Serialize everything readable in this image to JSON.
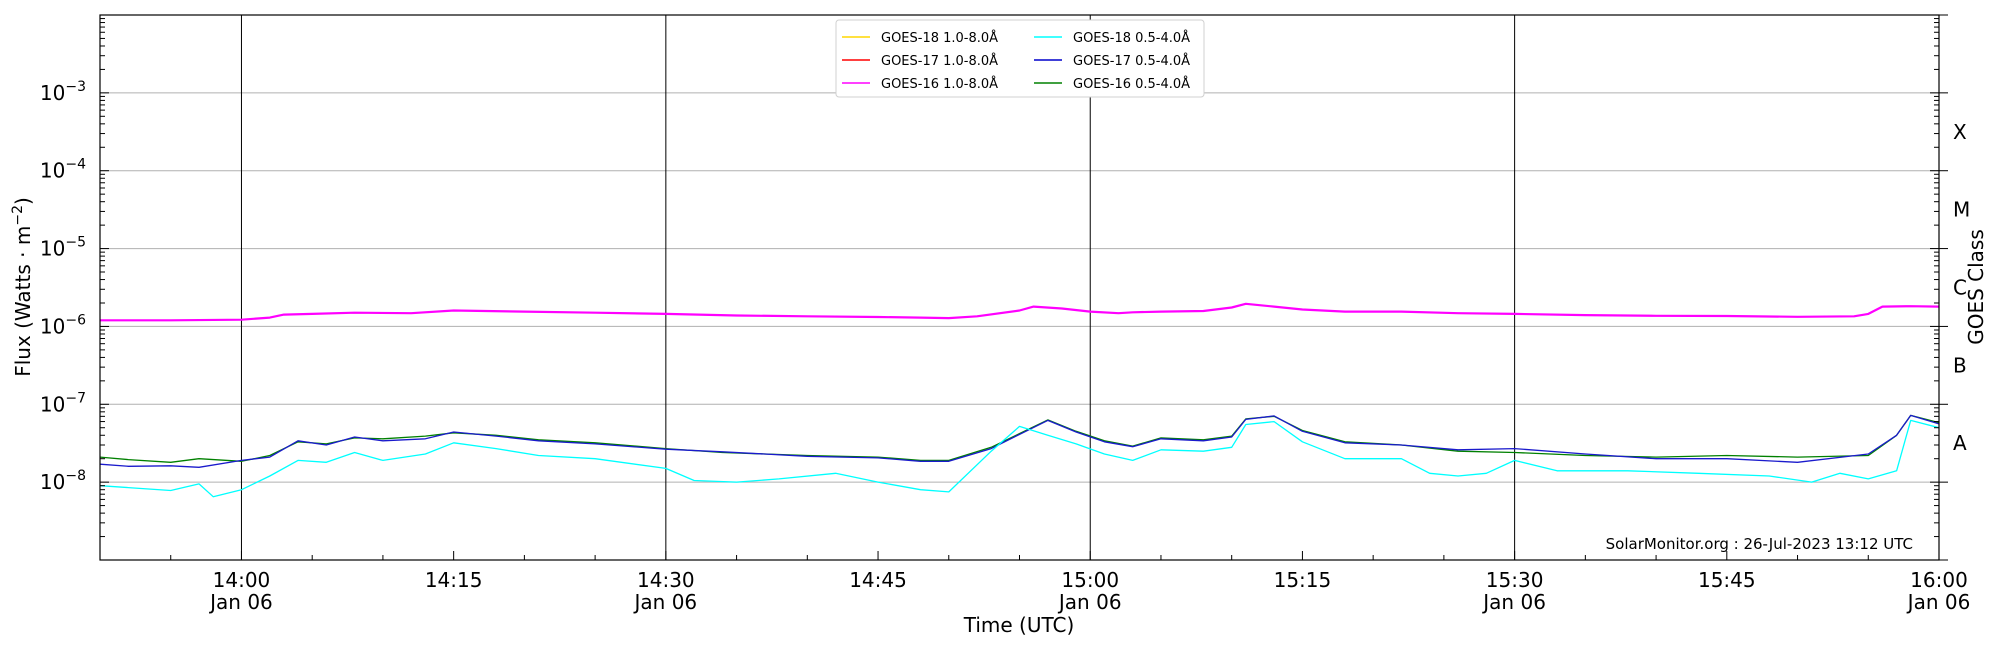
{
  "chart_data": {
    "type": "line",
    "xlabel": "Time (UTC)",
    "ylabel": "Flux (Watts · m⁻²)",
    "y2label": "GOES Class",
    "y_scale": "log",
    "ylim": [
      1e-09,
      0.01
    ],
    "xlim": [
      "2023-01-06 13:50",
      "2023-01-06 16:00"
    ],
    "grid": "horizontal",
    "legend_position": "top-center",
    "credit": "SolarMonitor.org : 26-Jul-2023 13:12 UTC",
    "y_ticks": [
      {
        "value": 1e-08,
        "base": "10",
        "exp": "−8"
      },
      {
        "value": 1e-07,
        "base": "10",
        "exp": "−7"
      },
      {
        "value": 1e-06,
        "base": "10",
        "exp": "−6"
      },
      {
        "value": 1e-05,
        "base": "10",
        "exp": "−5"
      },
      {
        "value": 0.0001,
        "base": "10",
        "exp": "−4"
      },
      {
        "value": 0.001,
        "base": "10",
        "exp": "−3"
      }
    ],
    "x_ticks": [
      {
        "time": "14:00",
        "date": "Jan 06"
      },
      {
        "time": "14:15",
        "date": ""
      },
      {
        "time": "14:30",
        "date": "Jan 06"
      },
      {
        "time": "14:45",
        "date": ""
      },
      {
        "time": "15:00",
        "date": "Jan 06"
      },
      {
        "time": "15:15",
        "date": ""
      },
      {
        "time": "15:30",
        "date": "Jan 06"
      },
      {
        "time": "15:45",
        "date": ""
      },
      {
        "time": "16:00",
        "date": "Jan 06"
      }
    ],
    "vertical_lines": [
      "14:00",
      "14:30",
      "15:00",
      "15:30"
    ],
    "goes_classes": [
      {
        "label": "A",
        "value": 3.16e-08
      },
      {
        "label": "B",
        "value": 3.16e-07
      },
      {
        "label": "C",
        "value": 3.16e-06
      },
      {
        "label": "M",
        "value": 3.16e-05
      },
      {
        "label": "X",
        "value": 0.000316
      }
    ],
    "legend": [
      {
        "name": "GOES-18 1.0-8.0Å",
        "color": "#ffd700"
      },
      {
        "name": "GOES-17 1.0-8.0Å",
        "color": "#ff0000"
      },
      {
        "name": "GOES-16 1.0-8.0Å",
        "color": "#ff00ff"
      },
      {
        "name": "GOES-18 0.5-4.0Å",
        "color": "#00ffff"
      },
      {
        "name": "GOES-17 0.5-4.0Å",
        "color": "#0000cc"
      },
      {
        "name": "GOES-16 0.5-4.0Å",
        "color": "#008000"
      }
    ],
    "series": [
      {
        "name": "GOES-16 1.0-8.0Å",
        "color": "#ff00ff",
        "x": [
          "13:50",
          "13:55",
          "14:00",
          "14:02",
          "14:03",
          "14:05",
          "14:08",
          "14:12",
          "14:15",
          "14:20",
          "14:25",
          "14:30",
          "14:35",
          "14:40",
          "14:45",
          "14:48",
          "14:50",
          "14:52",
          "14:55",
          "14:56",
          "14:58",
          "15:00",
          "15:02",
          "15:03",
          "15:05",
          "15:08",
          "15:10",
          "15:11",
          "15:13",
          "15:15",
          "15:18",
          "15:22",
          "15:26",
          "15:30",
          "15:35",
          "15:40",
          "15:45",
          "15:50",
          "15:54",
          "15:55",
          "15:56",
          "15:58",
          "16:00"
        ],
        "y": [
          1.2e-06,
          1.2e-06,
          1.22e-06,
          1.3e-06,
          1.42e-06,
          1.45e-06,
          1.5e-06,
          1.48e-06,
          1.6e-06,
          1.55e-06,
          1.5e-06,
          1.45e-06,
          1.38e-06,
          1.35e-06,
          1.32e-06,
          1.3e-06,
          1.28e-06,
          1.35e-06,
          1.6e-06,
          1.8e-06,
          1.7e-06,
          1.55e-06,
          1.48e-06,
          1.52e-06,
          1.55e-06,
          1.58e-06,
          1.75e-06,
          1.95e-06,
          1.8e-06,
          1.65e-06,
          1.55e-06,
          1.55e-06,
          1.48e-06,
          1.45e-06,
          1.4e-06,
          1.37e-06,
          1.36e-06,
          1.33e-06,
          1.35e-06,
          1.45e-06,
          1.8e-06,
          1.82e-06,
          1.8e-06
        ]
      },
      {
        "name": "GOES-16 0.5-4.0Å",
        "color": "#008000",
        "x": [
          "13:50",
          "13:52",
          "13:55",
          "13:57",
          "14:00",
          "14:02",
          "14:04",
          "14:06",
          "14:08",
          "14:10",
          "14:13",
          "14:15",
          "14:18",
          "14:21",
          "14:25",
          "14:30",
          "14:34",
          "14:40",
          "14:45",
          "14:48",
          "14:50",
          "14:53",
          "14:55",
          "14:57",
          "14:59",
          "15:01",
          "15:03",
          "15:05",
          "15:08",
          "15:10",
          "15:11",
          "15:13",
          "15:15",
          "15:18",
          "15:22",
          "15:26",
          "15:30",
          "15:35",
          "15:40",
          "15:45",
          "15:50",
          "15:55",
          "15:57",
          "15:58",
          "16:00"
        ],
        "y": [
          2.1e-08,
          1.95e-08,
          1.8e-08,
          2e-08,
          1.85e-08,
          2.2e-08,
          3.3e-08,
          3.1e-08,
          3.7e-08,
          3.6e-08,
          3.9e-08,
          4.3e-08,
          4e-08,
          3.5e-08,
          3.2e-08,
          2.7e-08,
          2.4e-08,
          2.2e-08,
          2.1e-08,
          1.9e-08,
          1.9e-08,
          2.8e-08,
          4.2e-08,
          6.3e-08,
          4.5e-08,
          3.4e-08,
          2.9e-08,
          3.7e-08,
          3.5e-08,
          3.9e-08,
          6.5e-08,
          7e-08,
          4.6e-08,
          3.3e-08,
          3e-08,
          2.5e-08,
          2.4e-08,
          2.2e-08,
          2.1e-08,
          2.2e-08,
          2.1e-08,
          2.2e-08,
          4e-08,
          7.2e-08,
          5.8e-08
        ]
      },
      {
        "name": "GOES-17 0.5-4.0Å",
        "color": "#1a1acc",
        "x": [
          "13:50",
          "13:52",
          "13:55",
          "13:57",
          "14:00",
          "14:02",
          "14:04",
          "14:06",
          "14:08",
          "14:10",
          "14:13",
          "14:15",
          "14:18",
          "14:21",
          "14:25",
          "14:30",
          "14:34",
          "14:40",
          "14:45",
          "14:48",
          "14:50",
          "14:53",
          "14:55",
          "14:57",
          "14:59",
          "15:01",
          "15:03",
          "15:05",
          "15:08",
          "15:10",
          "15:11",
          "15:13",
          "15:15",
          "15:18",
          "15:22",
          "15:26",
          "15:30",
          "15:35",
          "15:40",
          "15:45",
          "15:50",
          "15:55",
          "15:57",
          "15:58",
          "16:00"
        ],
        "y": [
          1.7e-08,
          1.6e-08,
          1.62e-08,
          1.55e-08,
          1.9e-08,
          2.1e-08,
          3.4e-08,
          3e-08,
          3.8e-08,
          3.4e-08,
          3.6e-08,
          4.4e-08,
          3.9e-08,
          3.4e-08,
          3.1e-08,
          2.65e-08,
          2.45e-08,
          2.15e-08,
          2.05e-08,
          1.85e-08,
          1.85e-08,
          2.7e-08,
          4.1e-08,
          6.2e-08,
          4.4e-08,
          3.3e-08,
          2.85e-08,
          3.6e-08,
          3.4e-08,
          3.8e-08,
          6.4e-08,
          7.1e-08,
          4.5e-08,
          3.2e-08,
          3e-08,
          2.6e-08,
          2.7e-08,
          2.3e-08,
          2e-08,
          2e-08,
          1.8e-08,
          2.3e-08,
          4e-08,
          7.2e-08,
          5.6e-08
        ]
      },
      {
        "name": "GOES-18 0.5-4.0Å",
        "color": "#00ffff",
        "x": [
          "13:50",
          "13:52",
          "13:55",
          "13:57",
          "13:58",
          "14:00",
          "14:02",
          "14:04",
          "14:06",
          "14:08",
          "14:10",
          "14:13",
          "14:15",
          "14:18",
          "14:21",
          "14:25",
          "14:30",
          "14:32",
          "14:35",
          "14:38",
          "14:42",
          "14:45",
          "14:48",
          "14:50",
          "14:53",
          "14:55",
          "14:57",
          "14:59",
          "15:01",
          "15:03",
          "15:05",
          "15:08",
          "15:10",
          "15:11",
          "15:13",
          "15:15",
          "15:18",
          "15:22",
          "15:24",
          "15:26",
          "15:28",
          "15:30",
          "15:33",
          "15:38",
          "15:43",
          "15:48",
          "15:51",
          "15:53",
          "15:55",
          "15:57",
          "15:58",
          "16:00"
        ],
        "y": [
          9e-09,
          8.5e-09,
          7.8e-09,
          9.5e-09,
          6.5e-09,
          8e-09,
          1.2e-08,
          1.9e-08,
          1.8e-08,
          2.4e-08,
          1.9e-08,
          2.3e-08,
          3.2e-08,
          2.7e-08,
          2.2e-08,
          2e-08,
          1.5e-08,
          1.05e-08,
          1e-08,
          1.1e-08,
          1.3e-08,
          1e-08,
          8e-09,
          7.5e-09,
          2.5e-08,
          5.2e-08,
          4e-08,
          3.1e-08,
          2.3e-08,
          1.9e-08,
          2.6e-08,
          2.5e-08,
          2.8e-08,
          5.5e-08,
          6e-08,
          3.3e-08,
          2e-08,
          2e-08,
          1.3e-08,
          1.2e-08,
          1.3e-08,
          1.9e-08,
          1.4e-08,
          1.4e-08,
          1.3e-08,
          1.2e-08,
          1e-08,
          1.3e-08,
          1.1e-08,
          1.4e-08,
          6.2e-08,
          5e-08
        ]
      }
    ]
  }
}
